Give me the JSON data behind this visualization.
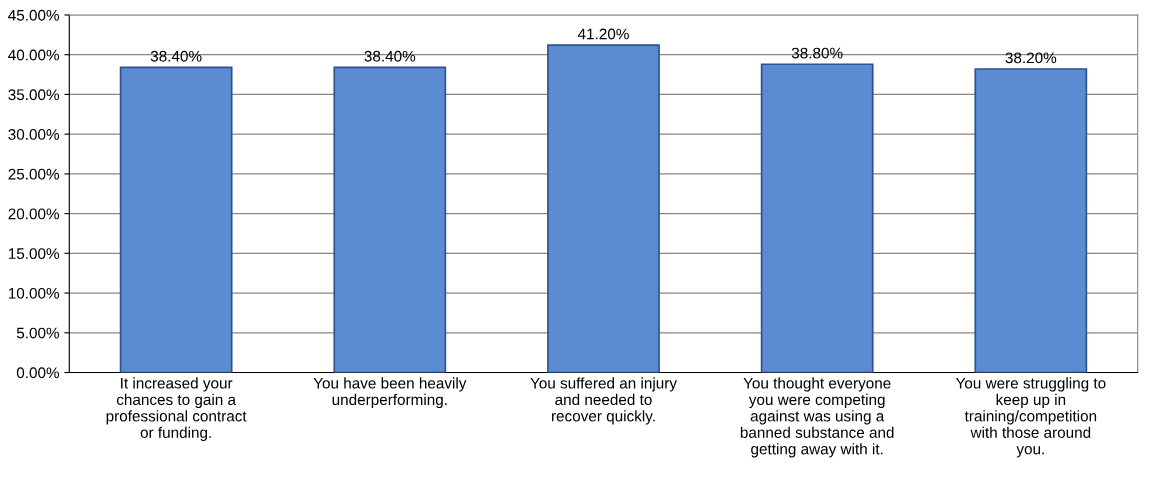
{
  "chart_data": {
    "type": "bar",
    "categories": [
      "It increased your\nchances to gain a\nprofessional contract\nor funding.",
      "You have been heavily\nunderperforming.",
      "You suffered an injury\nand needed to\nrecover quickly.",
      "You thought everyone\nyou were competing\nagainst was using a\nbanned substance and\ngetting away with it.",
      "You were struggling to\nkeep up in\ntraining/competition\nwith those around\nyou."
    ],
    "values": [
      38.4,
      38.4,
      41.2,
      38.8,
      38.2
    ],
    "value_labels": [
      "38.40%",
      "38.40%",
      "41.20%",
      "38.80%",
      "38.20%"
    ],
    "color": "#5b8bd0",
    "ylim": [
      0,
      45
    ],
    "yticks": [
      {
        "value": 0,
        "label": "0.00%"
      },
      {
        "value": 5,
        "label": "5.00%"
      },
      {
        "value": 10,
        "label": "10.00%"
      },
      {
        "value": 15,
        "label": "15.00%"
      },
      {
        "value": 20,
        "label": "20.00%"
      },
      {
        "value": 25,
        "label": "25.00%"
      },
      {
        "value": 30,
        "label": "30.00%"
      },
      {
        "value": 35,
        "label": "35.00%"
      },
      {
        "value": 40,
        "label": "40.00%"
      },
      {
        "value": 45,
        "label": "45.00%"
      }
    ],
    "grid": "y"
  }
}
